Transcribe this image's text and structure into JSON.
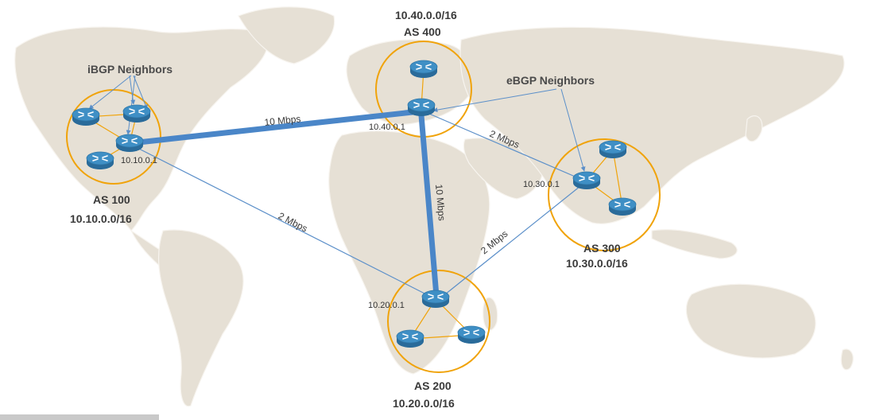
{
  "colors": {
    "land": "#e6e0d5",
    "land_edge": "#f7f4ef",
    "thick_link": "#4a86c8",
    "thin_link": "#5b8fc9",
    "as_circle": "#f0a30a",
    "internal_link": "#f0a30a",
    "router_top": "#3f8fc5",
    "router_side": "#2a6b9a"
  },
  "autonomous_systems": [
    {
      "id": "as100",
      "name": "AS 100",
      "prefix": "10.10.0.0/16",
      "router_ip": "10.10.0.1"
    },
    {
      "id": "as200",
      "name": "AS 200",
      "prefix": "10.20.0.0/16",
      "router_ip": "10.20.0.1"
    },
    {
      "id": "as300",
      "name": "AS 300",
      "prefix": "10.30.0.0/16",
      "router_ip": "10.30.0.1"
    },
    {
      "id": "as400",
      "name": "AS 400",
      "prefix": "10.40.0.0/16",
      "router_ip": "10.40.0.1"
    }
  ],
  "links": [
    {
      "from": "as100",
      "to": "as400",
      "bandwidth": "10  Mbps",
      "type": "thick"
    },
    {
      "from": "as400",
      "to": "as200",
      "bandwidth": "10 Mbps",
      "type": "thick"
    },
    {
      "from": "as400",
      "to": "as300",
      "bandwidth": "2  Mbps",
      "type": "thin"
    },
    {
      "from": "as100",
      "to": "as200",
      "bandwidth": "2  Mbps",
      "type": "thin"
    },
    {
      "from": "as200",
      "to": "as300",
      "bandwidth": "2  Mbps",
      "type": "thin"
    }
  ],
  "annotations": {
    "ibgp": "iBGP Neighbors",
    "ebgp": "eBGP Neighbors"
  }
}
